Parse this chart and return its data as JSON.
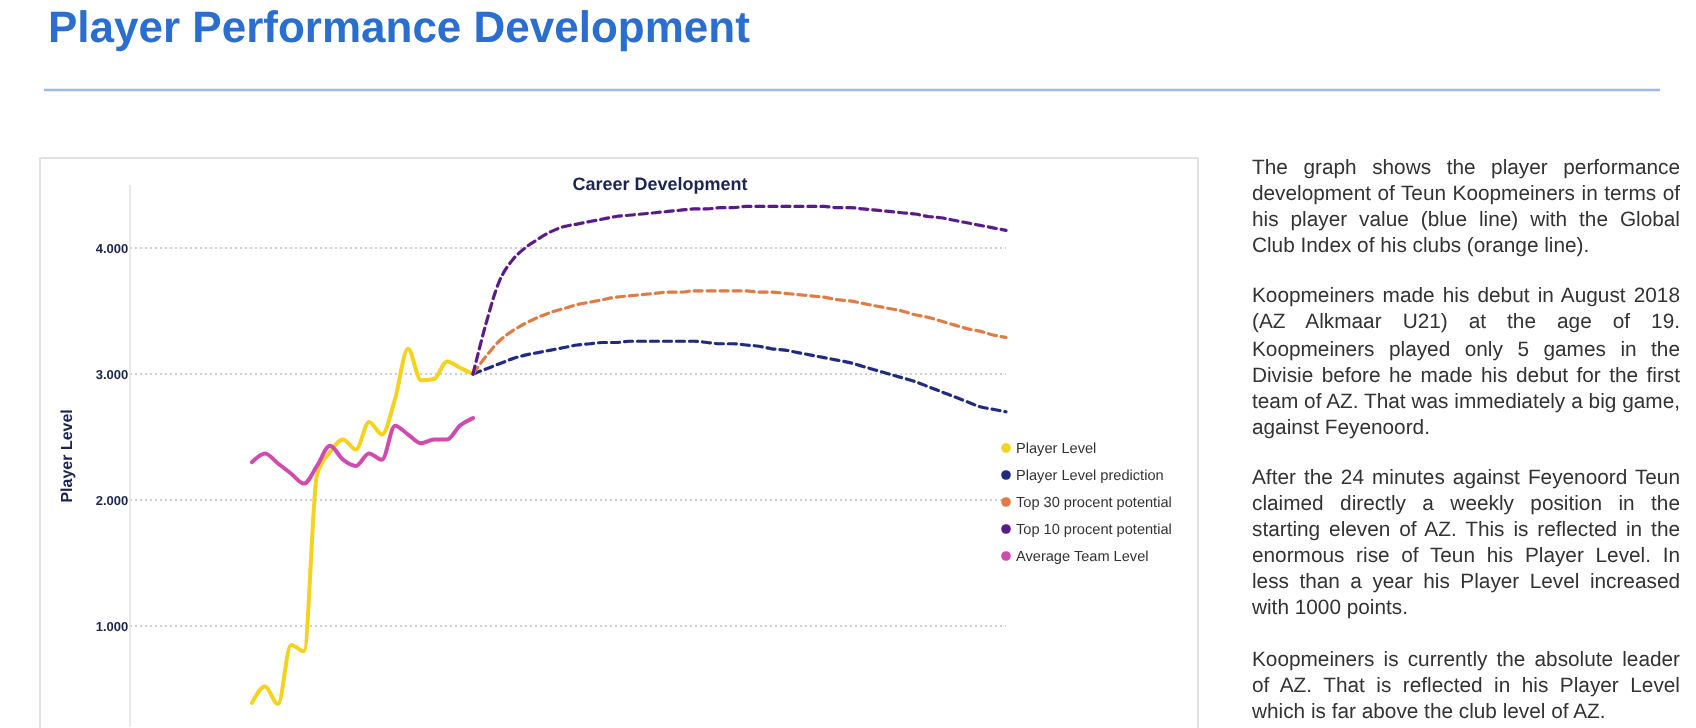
{
  "chart_data": {
    "type": "line",
    "title": "Player Performance Development",
    "subtitle": "Career Development",
    "ylabel": "Player Level",
    "categories": [
      null,
      null,
      null,
      null,
      null,
      null,
      null,
      null,
      null,
      null,
      null,
      null,
      null,
      null,
      null,
      null,
      null,
      null,
      null,
      null,
      null,
      null,
      null,
      null,
      null,
      null,
      null,
      null,
      null,
      null,
      null,
      null,
      null,
      null,
      null,
      null,
      null,
      null,
      null,
      null,
      null,
      null,
      null,
      null,
      null,
      null,
      null,
      null,
      null,
      null,
      null,
      null,
      null,
      null,
      null,
      null,
      null,
      null,
      null
    ],
    "series": [
      {
        "name": "Player Level",
        "color": "#f5d21b",
        "line_style": "solid",
        "values": [
          390,
          520,
          380,
          850,
          800,
          2200,
          2380,
          2480,
          2400,
          2620,
          2520,
          2800,
          3200,
          2950,
          2960,
          3100,
          3050,
          3000,
          null,
          null,
          null,
          null,
          null,
          null,
          null,
          null,
          null,
          null,
          null,
          null,
          null,
          null,
          null,
          null,
          null,
          null,
          null,
          null,
          null,
          null,
          null,
          null,
          null,
          null,
          null,
          null,
          null,
          null,
          null,
          null,
          null,
          null,
          null,
          null,
          null,
          null,
          null,
          null,
          null
        ]
      },
      {
        "name": "Player Level prediction",
        "color": "#1f2a80",
        "line_style": "dashed",
        "values": [
          null,
          null,
          null,
          null,
          null,
          null,
          null,
          null,
          null,
          null,
          null,
          null,
          null,
          null,
          null,
          null,
          null,
          3000,
          3040,
          3080,
          3120,
          3150,
          3170,
          3190,
          3210,
          3230,
          3240,
          3250,
          3250,
          3260,
          3260,
          3260,
          3260,
          3260,
          3260,
          3250,
          3240,
          3240,
          3230,
          3220,
          3200,
          3190,
          3170,
          3150,
          3130,
          3110,
          3090,
          3060,
          3030,
          3000,
          2970,
          2940,
          2900,
          2860,
          2820,
          2780,
          2740,
          2720,
          2700
        ]
      },
      {
        "name": "Top 30 procent potential",
        "color": "#e07b45",
        "line_style": "dashed",
        "values": [
          null,
          null,
          null,
          null,
          null,
          null,
          null,
          null,
          null,
          null,
          null,
          null,
          null,
          null,
          null,
          null,
          null,
          3000,
          3140,
          3260,
          3340,
          3400,
          3450,
          3490,
          3520,
          3550,
          3570,
          3590,
          3610,
          3620,
          3630,
          3640,
          3650,
          3650,
          3660,
          3660,
          3660,
          3660,
          3660,
          3650,
          3650,
          3640,
          3630,
          3620,
          3610,
          3590,
          3580,
          3560,
          3540,
          3520,
          3500,
          3470,
          3450,
          3420,
          3390,
          3360,
          3340,
          3310,
          3290
        ]
      },
      {
        "name": "Top 10 procent potential",
        "color": "#5b1a8a",
        "line_style": "dashed",
        "values": [
          null,
          null,
          null,
          null,
          null,
          null,
          null,
          null,
          null,
          null,
          null,
          null,
          null,
          null,
          null,
          null,
          null,
          3000,
          3400,
          3730,
          3900,
          4000,
          4070,
          4130,
          4170,
          4190,
          4210,
          4230,
          4250,
          4260,
          4270,
          4280,
          4290,
          4300,
          4310,
          4310,
          4320,
          4320,
          4330,
          4330,
          4330,
          4330,
          4330,
          4330,
          4330,
          4320,
          4320,
          4310,
          4300,
          4290,
          4280,
          4270,
          4250,
          4240,
          4220,
          4200,
          4180,
          4160,
          4140
        ]
      },
      {
        "name": "Average Team Level",
        "color": "#d04bb0",
        "line_style": "solid",
        "values": [
          2300,
          2370,
          2290,
          2210,
          2130,
          2270,
          2430,
          2320,
          2270,
          2370,
          2320,
          2590,
          2520,
          2450,
          2480,
          2480,
          2590,
          2650,
          null,
          null,
          null,
          null,
          null,
          null,
          null,
          null,
          null,
          null,
          null,
          null,
          null,
          null,
          null,
          null,
          null,
          null,
          null,
          null,
          null,
          null,
          null,
          null,
          null,
          null,
          null,
          null,
          null,
          null,
          null,
          null,
          null,
          null,
          null,
          null,
          null,
          null,
          null,
          null,
          null
        ]
      }
    ],
    "ylim": [
      200,
      4500
    ],
    "yticks": [
      {
        "value": 1000,
        "label": "1.000"
      },
      {
        "value": 2000,
        "label": "2.000"
      },
      {
        "value": 3000,
        "label": "3.000"
      },
      {
        "value": 4000,
        "label": "4.000"
      }
    ],
    "grid": "y",
    "legend": "right",
    "tick_labels": "y",
    "annotations": [
      "The graph shows the player performance development of Teun Koopmeiners in terms of his player value (blue line) with the Global Club Index of his clubs (orange line).",
      "Koopmeiners made his debut in August 2018 (AZ Alkmaar U21) at the age of 19. Koopmeiners played only 5 games in the Divisie before he made his debut for the first team of AZ. That was immediately a big game, against Feyenoord.",
      "After the 24 minutes against Feyenoord Teun claimed directly a weekly position in the starting eleven of AZ. This is reflected in the enormous rise of Teun his Player Level. In less than a year his Player Level increased with 1000 points.",
      "Koopmeiners is currently the absolute leader of AZ. That is reflected in his Player Level which is far above the club level of AZ."
    ]
  }
}
